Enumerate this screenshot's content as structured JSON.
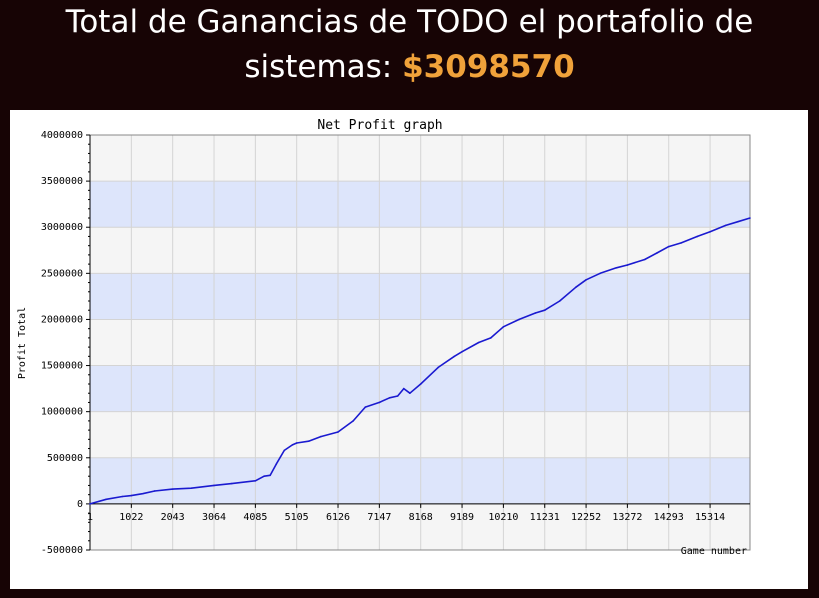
{
  "headline": {
    "line1": "Total de Ganancias de TODO el portafolio de",
    "line2_prefix": "sistemas: ",
    "amount": "$3098570",
    "amount_color": "#f0a23a"
  },
  "chart_data": {
    "type": "line",
    "title": "Net Profit graph",
    "xlabel": "Game number",
    "ylabel": "Profit Total",
    "ylim": [
      -500000,
      4000000
    ],
    "xlim": [
      1,
      16300
    ],
    "x_ticks": [
      1,
      1022,
      2043,
      3064,
      4085,
      5105,
      6126,
      7147,
      8168,
      9189,
      10210,
      11231,
      12252,
      13272,
      14293,
      15314
    ],
    "y_ticks": [
      -500000,
      0,
      500000,
      1000000,
      1500000,
      2000000,
      2500000,
      3000000,
      3500000,
      4000000
    ],
    "grid": true,
    "band_colors": [
      "#f5f5f5",
      "#dde5fb"
    ],
    "line_color": "#1a1ad0",
    "series": [
      {
        "x": [
          1,
          400,
          800,
          1022,
          1300,
          1600,
          2043,
          2500,
          3064,
          3500,
          4085,
          4300,
          4450,
          4600,
          4800,
          5000,
          5105,
          5400,
          5700,
          6126,
          6500,
          6800,
          7147,
          7400,
          7600,
          7750,
          7900,
          8168,
          8600,
          9000,
          9189,
          9600,
          9900,
          10210,
          10600,
          11000,
          11231,
          11600,
          12000,
          12252,
          12600,
          13000,
          13272,
          13700,
          14000,
          14293,
          14600,
          15000,
          15314,
          15700,
          16000,
          16300
        ],
        "y": [
          0,
          50000,
          80000,
          90000,
          110000,
          140000,
          160000,
          170000,
          200000,
          220000,
          250000,
          300000,
          310000,
          430000,
          580000,
          640000,
          660000,
          680000,
          730000,
          780000,
          900000,
          1050000,
          1100000,
          1150000,
          1170000,
          1250000,
          1200000,
          1300000,
          1480000,
          1600000,
          1650000,
          1750000,
          1800000,
          1920000,
          2000000,
          2070000,
          2100000,
          2200000,
          2350000,
          2430000,
          2500000,
          2560000,
          2590000,
          2650000,
          2720000,
          2790000,
          2830000,
          2900000,
          2950000,
          3020000,
          3060000,
          3100000
        ]
      }
    ]
  }
}
